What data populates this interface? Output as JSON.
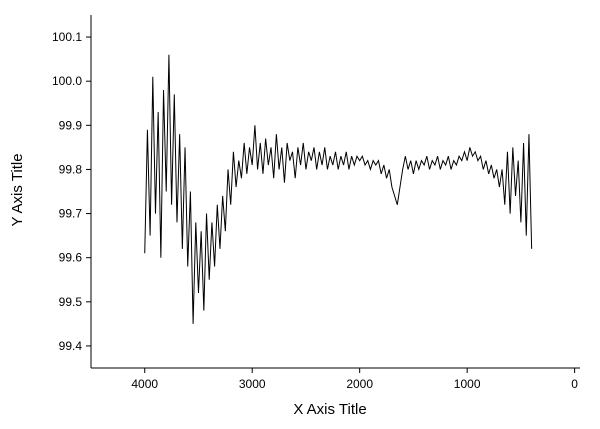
{
  "chart_data": {
    "type": "line",
    "x_label": "X Axis Title",
    "y_label": "Y Axis Title",
    "xlim": [
      4500,
      -50
    ],
    "ylim": [
      99.35,
      100.15
    ],
    "xticks": [
      4000,
      3000,
      2000,
      1000,
      0
    ],
    "yticks": [
      99.4,
      99.5,
      99.6,
      99.7,
      99.8,
      99.9,
      {
        "value": 100,
        "label": "100.0"
      },
      100.1
    ],
    "color": "#000000",
    "x": [
      4000,
      3975,
      3950,
      3925,
      3900,
      3875,
      3850,
      3825,
      3800,
      3775,
      3750,
      3725,
      3700,
      3675,
      3650,
      3625,
      3600,
      3575,
      3550,
      3525,
      3500,
      3475,
      3450,
      3425,
      3400,
      3375,
      3350,
      3325,
      3300,
      3275,
      3250,
      3225,
      3200,
      3175,
      3150,
      3125,
      3100,
      3075,
      3050,
      3025,
      3000,
      2975,
      2950,
      2925,
      2900,
      2875,
      2850,
      2825,
      2800,
      2775,
      2750,
      2725,
      2700,
      2675,
      2650,
      2625,
      2600,
      2575,
      2550,
      2525,
      2500,
      2475,
      2450,
      2425,
      2400,
      2375,
      2350,
      2325,
      2300,
      2275,
      2250,
      2225,
      2200,
      2175,
      2150,
      2125,
      2100,
      2075,
      2050,
      2025,
      2000,
      1975,
      1950,
      1925,
      1900,
      1875,
      1850,
      1825,
      1800,
      1775,
      1750,
      1725,
      1700,
      1675,
      1650,
      1625,
      1600,
      1575,
      1550,
      1525,
      1500,
      1475,
      1450,
      1425,
      1400,
      1375,
      1350,
      1325,
      1300,
      1275,
      1250,
      1225,
      1200,
      1175,
      1150,
      1125,
      1100,
      1075,
      1050,
      1025,
      1000,
      975,
      950,
      925,
      900,
      875,
      850,
      825,
      800,
      775,
      750,
      725,
      700,
      675,
      650,
      625,
      600,
      575,
      550,
      525,
      500,
      475,
      450,
      425,
      400
    ],
    "values": [
      99.61,
      99.89,
      99.65,
      100.01,
      99.7,
      99.93,
      99.6,
      99.98,
      99.75,
      100.06,
      99.72,
      99.97,
      99.68,
      99.88,
      99.62,
      99.85,
      99.58,
      99.75,
      99.45,
      99.68,
      99.52,
      99.66,
      99.48,
      99.7,
      99.55,
      99.68,
      99.58,
      99.72,
      99.62,
      99.74,
      99.66,
      99.8,
      99.72,
      99.84,
      99.76,
      99.82,
      99.78,
      99.86,
      99.79,
      99.85,
      99.81,
      99.9,
      99.8,
      99.86,
      99.79,
      99.87,
      99.81,
      99.85,
      99.78,
      99.88,
      99.8,
      99.85,
      99.77,
      99.86,
      99.82,
      99.84,
      99.78,
      99.85,
      99.81,
      99.86,
      99.8,
      99.84,
      99.82,
      99.85,
      99.8,
      99.84,
      99.81,
      99.85,
      99.8,
      99.83,
      99.81,
      99.84,
      99.8,
      99.83,
      99.81,
      99.84,
      99.8,
      99.83,
      99.81,
      99.83,
      99.82,
      99.83,
      99.81,
      99.82,
      99.8,
      99.82,
      99.81,
      99.82,
      99.79,
      99.81,
      99.78,
      99.8,
      99.76,
      99.74,
      99.72,
      99.76,
      99.8,
      99.83,
      99.8,
      99.82,
      99.79,
      99.82,
      99.8,
      99.82,
      99.81,
      99.83,
      99.8,
      99.82,
      99.81,
      99.83,
      99.8,
      99.82,
      99.81,
      99.83,
      99.8,
      99.82,
      99.81,
      99.83,
      99.82,
      99.84,
      99.82,
      99.85,
      99.83,
      99.84,
      99.82,
      99.83,
      99.8,
      99.82,
      99.79,
      99.81,
      99.78,
      99.8,
      99.76,
      99.8,
      99.72,
      99.84,
      99.7,
      99.85,
      99.74,
      99.82,
      99.68,
      99.86,
      99.65,
      99.88,
      99.62
    ]
  }
}
